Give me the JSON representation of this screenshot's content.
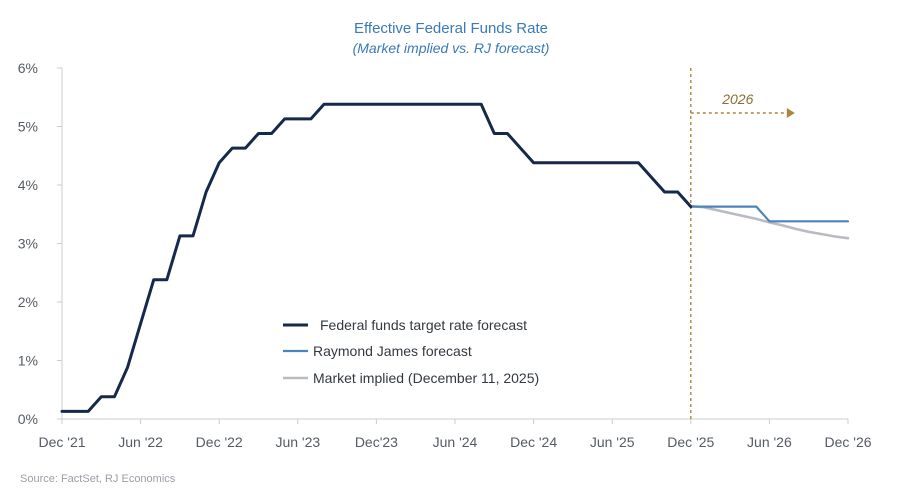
{
  "chart_data": {
    "type": "line",
    "title": "Effective Federal Funds Rate",
    "subtitle": "(Market implied vs. RJ forecast)",
    "ylim": [
      0,
      6
    ],
    "y_ticks": [
      "0%",
      "1%",
      "2%",
      "3%",
      "4%",
      "5%",
      "6%"
    ],
    "y_tick_values": [
      0,
      1,
      2,
      3,
      4,
      5,
      6
    ],
    "x_range": [
      "2021-12",
      "2026-12"
    ],
    "x_ticks": [
      {
        "label": "Dec '21",
        "date": "2021-12"
      },
      {
        "label": "Jun '22",
        "date": "2022-06"
      },
      {
        "label": "Dec '22",
        "date": "2022-12"
      },
      {
        "label": "Jun '23",
        "date": "2023-06"
      },
      {
        "label": "Dec'23",
        "date": "2023-12"
      },
      {
        "label": "Jun '24",
        "date": "2024-06"
      },
      {
        "label": "Dec '24",
        "date": "2024-12"
      },
      {
        "label": "Jun '25",
        "date": "2025-06"
      },
      {
        "label": "Dec '25",
        "date": "2025-12"
      },
      {
        "label": "Jun '26",
        "date": "2026-06"
      },
      {
        "label": "Dec '26",
        "date": "2026-12"
      }
    ],
    "grid": false,
    "legend_position": "lower-center",
    "annotation": {
      "label": "2026",
      "date": "2025-12"
    },
    "source": "Source: FactSet, RJ Economics",
    "series": [
      {
        "name": "Federal funds target rate forecast",
        "color": "#15294a",
        "points": [
          [
            "2021-12",
            0.13
          ],
          [
            "2022-01",
            0.13
          ],
          [
            "2022-02",
            0.13
          ],
          [
            "2022-03",
            0.38
          ],
          [
            "2022-04",
            0.38
          ],
          [
            "2022-05",
            0.88
          ],
          [
            "2022-06",
            1.63
          ],
          [
            "2022-07",
            2.38
          ],
          [
            "2022-08",
            2.38
          ],
          [
            "2022-09",
            3.13
          ],
          [
            "2022-10",
            3.13
          ],
          [
            "2022-11",
            3.88
          ],
          [
            "2022-12",
            4.38
          ],
          [
            "2023-01",
            4.63
          ],
          [
            "2023-02",
            4.63
          ],
          [
            "2023-03",
            4.88
          ],
          [
            "2023-04",
            4.88
          ],
          [
            "2023-05",
            5.13
          ],
          [
            "2023-06",
            5.13
          ],
          [
            "2023-07",
            5.13
          ],
          [
            "2023-08",
            5.38
          ],
          [
            "2023-09",
            5.38
          ],
          [
            "2023-10",
            5.38
          ],
          [
            "2023-11",
            5.38
          ],
          [
            "2023-12",
            5.38
          ],
          [
            "2024-01",
            5.38
          ],
          [
            "2024-02",
            5.38
          ],
          [
            "2024-03",
            5.38
          ],
          [
            "2024-04",
            5.38
          ],
          [
            "2024-05",
            5.38
          ],
          [
            "2024-06",
            5.38
          ],
          [
            "2024-07",
            5.38
          ],
          [
            "2024-08",
            5.38
          ],
          [
            "2024-09",
            4.88
          ],
          [
            "2024-10",
            4.88
          ],
          [
            "2024-11",
            4.63
          ],
          [
            "2024-12",
            4.38
          ],
          [
            "2025-01",
            4.38
          ],
          [
            "2025-02",
            4.38
          ],
          [
            "2025-03",
            4.38
          ],
          [
            "2025-04",
            4.38
          ],
          [
            "2025-05",
            4.38
          ],
          [
            "2025-06",
            4.38
          ],
          [
            "2025-07",
            4.38
          ],
          [
            "2025-08",
            4.38
          ],
          [
            "2025-09",
            4.13
          ],
          [
            "2025-10",
            3.88
          ],
          [
            "2025-11",
            3.88
          ],
          [
            "2025-12",
            3.63
          ]
        ]
      },
      {
        "name": "Raymond James forecast",
        "color": "#4a84b8",
        "points": [
          [
            "2025-12",
            3.63
          ],
          [
            "2026-01",
            3.63
          ],
          [
            "2026-02",
            3.63
          ],
          [
            "2026-03",
            3.63
          ],
          [
            "2026-04",
            3.63
          ],
          [
            "2026-05",
            3.63
          ],
          [
            "2026-06",
            3.38
          ],
          [
            "2026-07",
            3.38
          ],
          [
            "2026-08",
            3.38
          ],
          [
            "2026-09",
            3.38
          ],
          [
            "2026-10",
            3.38
          ],
          [
            "2026-11",
            3.38
          ],
          [
            "2026-12",
            3.38
          ]
        ]
      },
      {
        "name": "Market implied (December 11, 2025)",
        "color": "#b8bcc2",
        "points": [
          [
            "2025-12",
            3.64
          ],
          [
            "2026-01",
            3.62
          ],
          [
            "2026-02",
            3.57
          ],
          [
            "2026-03",
            3.52
          ],
          [
            "2026-04",
            3.47
          ],
          [
            "2026-05",
            3.42
          ],
          [
            "2026-06",
            3.36
          ],
          [
            "2026-07",
            3.31
          ],
          [
            "2026-08",
            3.25
          ],
          [
            "2026-09",
            3.2
          ],
          [
            "2026-10",
            3.16
          ],
          [
            "2026-11",
            3.12
          ],
          [
            "2026-12",
            3.09
          ]
        ]
      }
    ]
  }
}
